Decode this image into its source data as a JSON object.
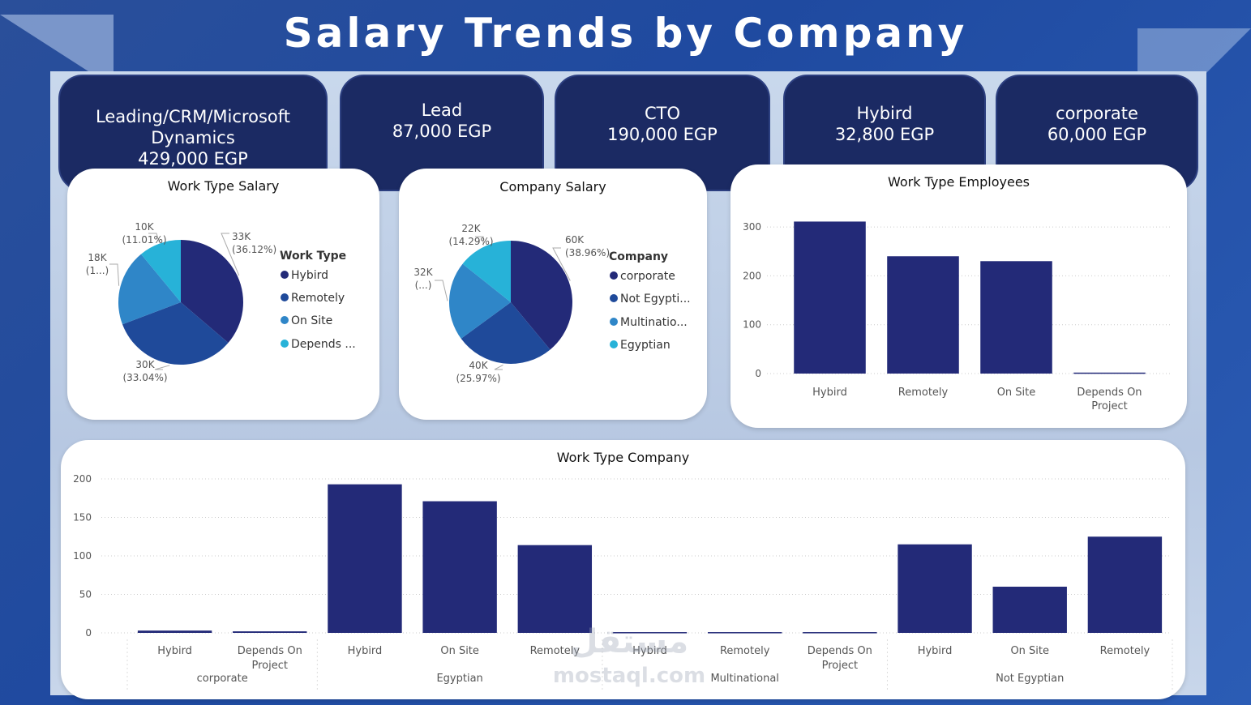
{
  "header": {
    "title": "Salary Trends by Company"
  },
  "kpis": [
    {
      "line1": "Leading/CRM/Microsoft",
      "line2": "Dynamics",
      "value": "429,000 EGP"
    },
    {
      "line1": "Lead",
      "value": "87,000 EGP"
    },
    {
      "line1": "CTO",
      "value": "190,000 EGP"
    },
    {
      "line1": "Hybird",
      "value": "32,800 EGP"
    },
    {
      "line1": "corporate",
      "value": "60,000 EGP"
    }
  ],
  "colors": {
    "navy": "#232a78",
    "blue": "#1f4a9a",
    "mid": "#2f86c8",
    "light": "#27b2d8"
  },
  "watermark": {
    "arabic": "مستقل",
    "latin": "mostaql.com"
  },
  "chart_data": [
    {
      "id": "work_type_salary",
      "type": "pie",
      "title": "Work Type Salary",
      "legend_title": "Work Type",
      "legend": [
        "Hybird",
        "Remotely",
        "On Site",
        "Depends ..."
      ],
      "slices": [
        {
          "name": "Hybird",
          "value": 33,
          "label": "33K",
          "pct": "(36.12%)"
        },
        {
          "name": "Remotely",
          "value": 30,
          "label": "30K",
          "pct": "(33.04%)"
        },
        {
          "name": "On Site",
          "value": 18,
          "label": "18K",
          "pct": "(1...)"
        },
        {
          "name": "Depends On Project",
          "value": 10,
          "label": "10K",
          "pct": "(11.01%)"
        }
      ]
    },
    {
      "id": "company_salary",
      "type": "pie",
      "title": "Company Salary",
      "legend_title": "Company",
      "legend": [
        "corporate",
        "Not Egypti...",
        "Multinatio...",
        "Egyptian"
      ],
      "slices": [
        {
          "name": "corporate",
          "value": 60,
          "label": "60K",
          "pct": "(38.96%)"
        },
        {
          "name": "Not Egyptian",
          "value": 40,
          "label": "40K",
          "pct": "(25.97%)"
        },
        {
          "name": "Multinational",
          "value": 32,
          "label": "32K",
          "pct": "(...)"
        },
        {
          "name": "Egyptian",
          "value": 22,
          "label": "22K",
          "pct": "(14.29%)"
        }
      ]
    },
    {
      "id": "work_type_employees",
      "type": "bar",
      "title": "Work Type Employees",
      "categories": [
        "Hybird",
        "Remotely",
        "On Site",
        "Depends On Project"
      ],
      "category_lines": [
        [
          "Hybird"
        ],
        [
          "Remotely"
        ],
        [
          "On Site"
        ],
        [
          "Depends On",
          "Project"
        ]
      ],
      "values": [
        311,
        240,
        230,
        2
      ],
      "yticks": [
        0,
        100,
        200,
        300
      ],
      "ylim": [
        0,
        320
      ]
    },
    {
      "id": "work_type_company",
      "type": "bar",
      "title": "Work Type Company",
      "groups": [
        {
          "name": "corporate",
          "categories": [
            [
              "Hybird"
            ],
            [
              "Depends On",
              "Project"
            ]
          ],
          "values": [
            3,
            2
          ]
        },
        {
          "name": "Egyptian",
          "categories": [
            [
              "Hybird"
            ],
            [
              "On Site"
            ],
            [
              "Remotely"
            ]
          ],
          "values": [
            193,
            171,
            114
          ]
        },
        {
          "name": "Multinational",
          "categories": [
            [
              "Hybird"
            ],
            [
              "Remotely"
            ],
            [
              "Depends On",
              "Project"
            ]
          ],
          "values": [
            1,
            1,
            1
          ]
        },
        {
          "name": "Not Egyptian",
          "categories": [
            [
              "Hybird"
            ],
            [
              "On Site"
            ],
            [
              "Remotely"
            ]
          ],
          "values": [
            115,
            60,
            125
          ]
        }
      ],
      "yticks": [
        0,
        50,
        100,
        150,
        200
      ],
      "ylim": [
        0,
        200
      ]
    }
  ]
}
